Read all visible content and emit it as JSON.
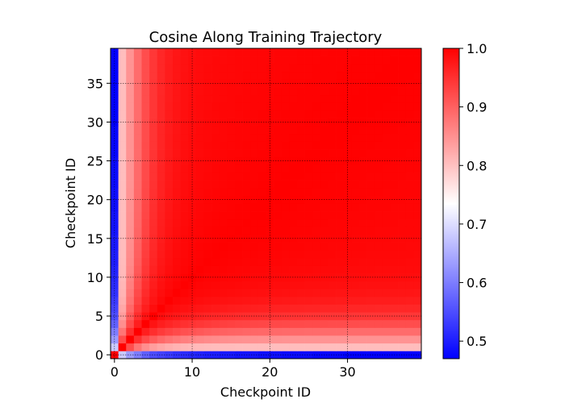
{
  "chart_data": {
    "type": "heatmap",
    "title": "Cosine Along Training Trajectory",
    "xlabel": "Checkpoint ID",
    "ylabel": "Checkpoint ID",
    "n_checkpoints": 40,
    "x_ticks": [
      0,
      10,
      20,
      30
    ],
    "y_ticks": [
      0,
      5,
      10,
      15,
      20,
      25,
      30,
      35
    ],
    "value_range": [
      0.47,
      1.0
    ],
    "colormap": "bwr",
    "colorbar_ticks": [
      0.5,
      0.6,
      0.7,
      0.8,
      0.9,
      1.0
    ],
    "grid": true,
    "symmetric": true,
    "diagonal_value": 1.0,
    "cosine_to_checkpoint_0": [
      1.0,
      0.68,
      0.63,
      0.6,
      0.57,
      0.55,
      0.54,
      0.53,
      0.52,
      0.515,
      0.51,
      0.505,
      0.5,
      0.5,
      0.495,
      0.495,
      0.49,
      0.49,
      0.49,
      0.485,
      0.485,
      0.485,
      0.48,
      0.48,
      0.48,
      0.48,
      0.475,
      0.475,
      0.475,
      0.475,
      0.47,
      0.47,
      0.47,
      0.47,
      0.47,
      0.47,
      0.47,
      0.47,
      0.47,
      0.47
    ]
  }
}
